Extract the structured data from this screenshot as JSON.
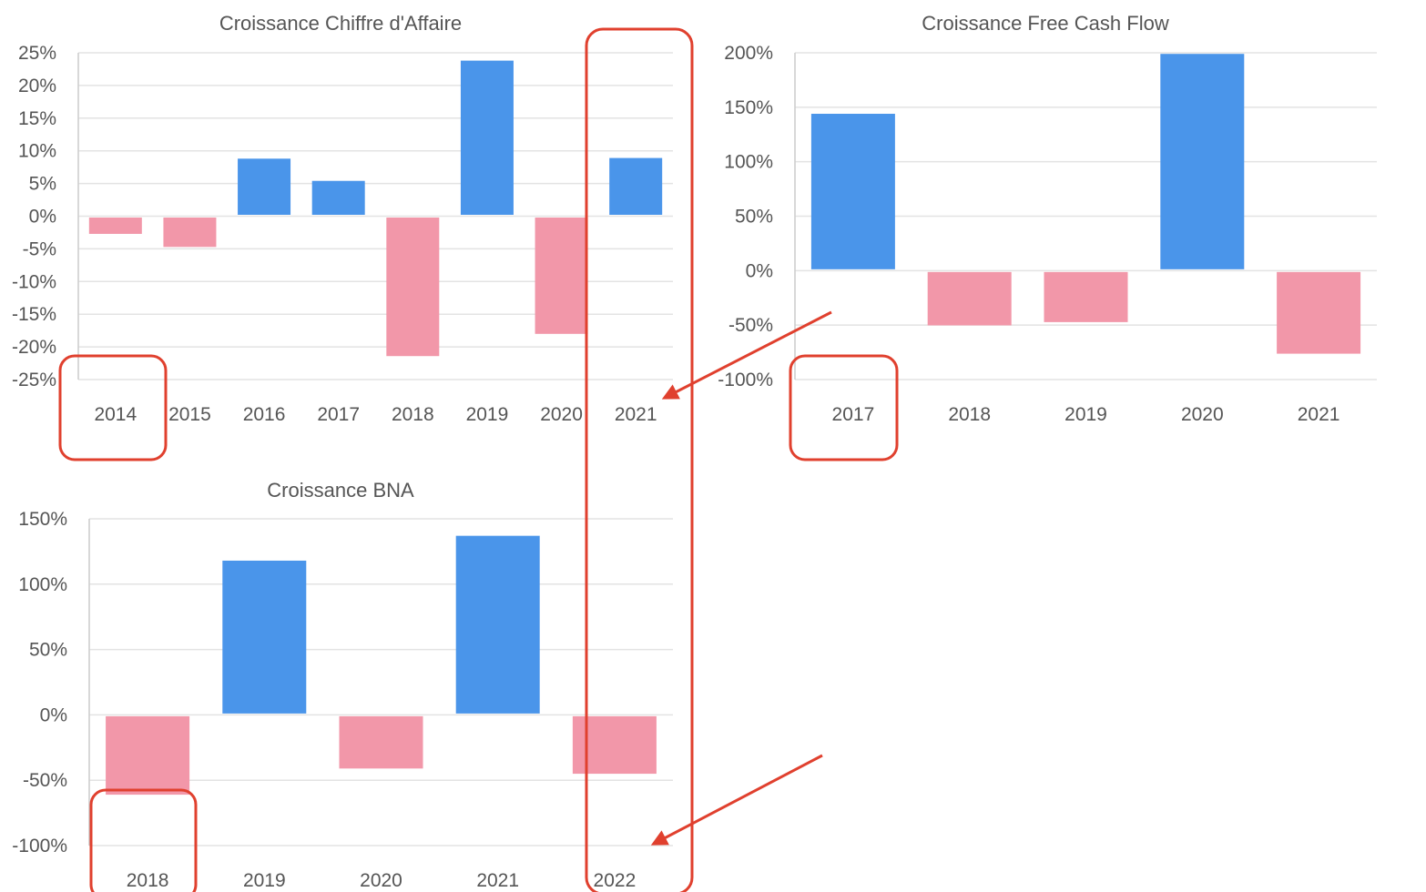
{
  "colors": {
    "positive": "#4a95ea",
    "negative": "#f297a9",
    "annotation": "#e0402e",
    "text": "#555555",
    "grid": "#e3e3e3"
  },
  "chart_data": [
    {
      "id": "revenue",
      "type": "bar",
      "title": "Croissance Chiffre d'Affaire",
      "categories": [
        "2014",
        "2015",
        "2016",
        "2017",
        "2018",
        "2019",
        "2020",
        "2021"
      ],
      "values": [
        -2.5,
        -4.5,
        8.8,
        5.4,
        -21.2,
        23.8,
        -17.8,
        8.9
      ],
      "ylim": [
        -25,
        25
      ],
      "yticks": [
        25,
        20,
        15,
        10,
        5,
        0,
        -5,
        -10,
        -15,
        -20,
        -25
      ],
      "ytick_labels": [
        "25%",
        "20%",
        "15%",
        "10%",
        "5%",
        "0%",
        "-5%",
        "-10%",
        "-15%",
        "-20%",
        "-25%"
      ],
      "grid": true,
      "legend": "none"
    },
    {
      "id": "fcf",
      "type": "bar",
      "title": "Croissance Free Cash Flow",
      "categories": [
        "2017",
        "2018",
        "2019",
        "2020",
        "2021"
      ],
      "values": [
        144,
        -49,
        -46,
        199,
        -75
      ],
      "ylim": [
        -100,
        200
      ],
      "yticks": [
        200,
        150,
        100,
        50,
        0,
        -50,
        -100
      ],
      "ytick_labels": [
        "200%",
        "150%",
        "100%",
        "50%",
        "0%",
        "-50%",
        "-100%"
      ],
      "grid": true,
      "legend": "none"
    },
    {
      "id": "bna",
      "type": "bar",
      "title": "Croissance BNA",
      "categories": [
        "2018",
        "2019",
        "2020",
        "2021",
        "2022"
      ],
      "values": [
        -60,
        118,
        -40,
        137,
        -44
      ],
      "ylim": [
        -100,
        150
      ],
      "yticks": [
        150,
        100,
        50,
        0,
        -50,
        -100
      ],
      "ytick_labels": [
        "150%",
        "100%",
        "50%",
        "0%",
        "-50%",
        "-100%"
      ],
      "grid": true,
      "legend": "none"
    }
  ]
}
